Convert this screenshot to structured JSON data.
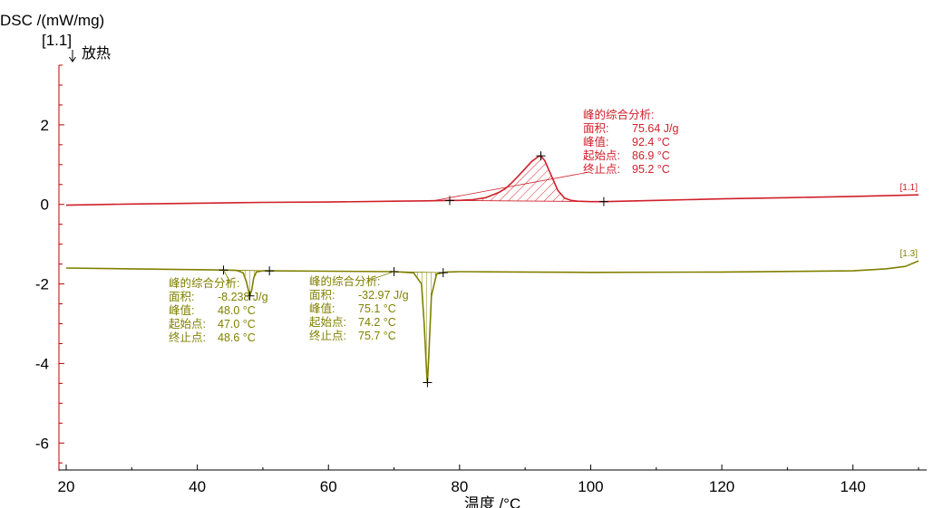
{
  "chart_data": {
    "type": "line",
    "ylabel": "DSC /(mW/mg)",
    "xlabel": "温度 /°C",
    "y_segment_tag": "[1.1]",
    "exo_label": "放热",
    "xlim": [
      20,
      150
    ],
    "ylim": [
      -6.7,
      3.5
    ],
    "xticks": [
      20,
      40,
      60,
      80,
      100,
      120,
      140
    ],
    "yticks": [
      2,
      0,
      -2,
      -4,
      -6
    ],
    "grid": false,
    "series": [
      {
        "name": "[1.1]",
        "color": "#d0202a",
        "x": [
          20,
          30,
          40,
          50,
          60,
          70,
          75,
          78.5,
          80,
          82,
          84,
          86,
          87,
          88,
          89,
          90,
          91,
          92,
          92.4,
          93,
          94,
          95,
          96,
          97,
          98,
          100,
          102,
          110,
          120,
          130,
          140,
          150
        ],
        "y": [
          -0.02,
          0.01,
          0.03,
          0.05,
          0.06,
          0.08,
          0.09,
          0.1,
          0.1,
          0.12,
          0.17,
          0.3,
          0.4,
          0.55,
          0.72,
          0.9,
          1.08,
          1.2,
          1.22,
          1.1,
          0.72,
          0.35,
          0.16,
          0.1,
          0.08,
          0.07,
          0.07,
          0.1,
          0.14,
          0.17,
          0.2,
          0.24
        ]
      },
      {
        "name": "[1.3]",
        "color": "#808000",
        "x": [
          20,
          30,
          40,
          44,
          46,
          47,
          47.5,
          48,
          48.3,
          48.6,
          49,
          50,
          51,
          60,
          70,
          73,
          74.2,
          74.6,
          75,
          75.1,
          75.3,
          75.7,
          76.5,
          78,
          80,
          90,
          100,
          120,
          140,
          145,
          148,
          150
        ],
        "y": [
          -1.6,
          -1.62,
          -1.64,
          -1.65,
          -1.66,
          -1.72,
          -1.95,
          -2.3,
          -2.15,
          -1.85,
          -1.7,
          -1.67,
          -1.67,
          -1.68,
          -1.69,
          -1.72,
          -2.0,
          -3.0,
          -4.3,
          -4.48,
          -3.8,
          -2.3,
          -1.75,
          -1.7,
          -1.69,
          -1.7,
          -1.71,
          -1.7,
          -1.67,
          -1.62,
          -1.56,
          -1.42
        ]
      }
    ],
    "peaks": [
      {
        "series": "[1.1]",
        "start": 78.5,
        "end": 102,
        "peak": 92.4,
        "title": "峰的综合分析:",
        "rows": [
          {
            "label": "面积:",
            "value": "75.64 J/g"
          },
          {
            "label": "峰值:",
            "value": "92.4 °C"
          },
          {
            "label": "起始点:",
            "value": "86.9 °C"
          },
          {
            "label": "终止点:",
            "value": "95.2 °C"
          }
        ]
      },
      {
        "series": "[1.3]",
        "start": 44,
        "end": 51,
        "peak": 48.0,
        "title": "峰的综合分析:",
        "rows": [
          {
            "label": "面积:",
            "value": "-8.238 J/g"
          },
          {
            "label": "峰值:",
            "value": "48.0 °C"
          },
          {
            "label": "起始点:",
            "value": "47.0 °C"
          },
          {
            "label": "终止点:",
            "value": "48.6 °C"
          }
        ]
      },
      {
        "series": "[1.3]",
        "start": 70,
        "end": 77.5,
        "peak": 75.1,
        "title": "峰的综合分析:",
        "rows": [
          {
            "label": "面积:",
            "value": "-32.97 J/g"
          },
          {
            "label": "峰值:",
            "value": "75.1 °C"
          },
          {
            "label": "起始点:",
            "value": "74.2 °C"
          },
          {
            "label": "终止点:",
            "value": "75.7 °C"
          }
        ]
      }
    ]
  }
}
